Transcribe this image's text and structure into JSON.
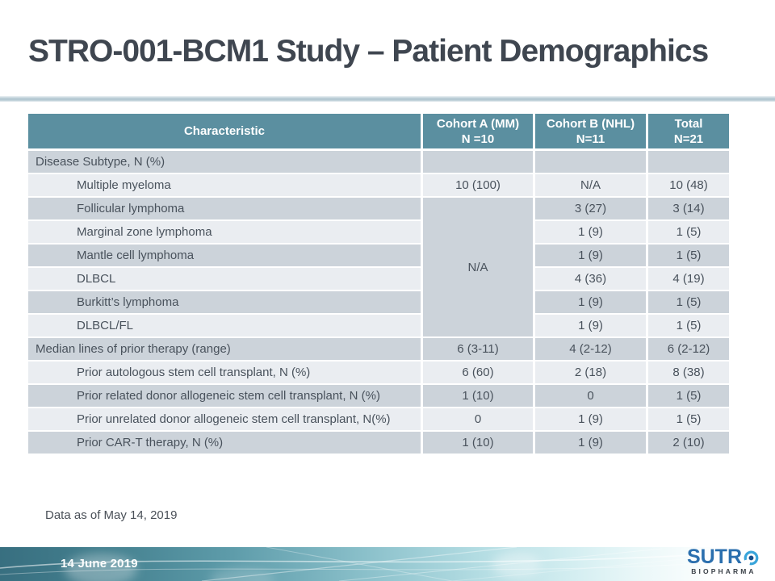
{
  "slide": {
    "title": "STRO-001-BCM1 Study – Patient Demographics",
    "footnote": "Data as of May 14, 2019"
  },
  "table": {
    "columns": [
      {
        "label": "Characteristic",
        "sub": ""
      },
      {
        "label": "Cohort A (MM)",
        "sub": "N =10"
      },
      {
        "label": "Cohort B (NHL)",
        "sub": "N=11"
      },
      {
        "label": "Total",
        "sub": "N=21"
      }
    ],
    "rows": [
      {
        "label": "Disease Subtype, N (%)",
        "indent": false,
        "a": "",
        "b": "",
        "t": ""
      },
      {
        "label": "Multiple myeloma",
        "indent": true,
        "a": "10 (100)",
        "b": "N/A",
        "t": "10 (48)"
      },
      {
        "label": "Follicular lymphoma",
        "indent": true,
        "a": {
          "merge": 6,
          "value": "N/A"
        },
        "b": "3 (27)",
        "t": "3 (14)"
      },
      {
        "label": "Marginal zone lymphoma",
        "indent": true,
        "a": null,
        "b": "1 (9)",
        "t": "1 (5)"
      },
      {
        "label": "Mantle cell lymphoma",
        "indent": true,
        "a": null,
        "b": "1 (9)",
        "t": "1 (5)"
      },
      {
        "label": "DLBCL",
        "indent": true,
        "a": null,
        "b": "4 (36)",
        "t": "4 (19)"
      },
      {
        "label": "Burkitt’s lymphoma",
        "indent": true,
        "a": null,
        "b": "1 (9)",
        "t": "1 (5)"
      },
      {
        "label": "DLBCL/FL",
        "indent": true,
        "a": null,
        "b": "1 (9)",
        "t": "1 (5)"
      },
      {
        "label": "Median lines of prior therapy (range)",
        "indent": false,
        "a": "6 (3-11)",
        "b": "4 (2-12)",
        "t": "6 (2-12)"
      },
      {
        "label": "Prior autologous stem cell transplant, N (%)",
        "indent": true,
        "a": "6 (60)",
        "b": "2 (18)",
        "t": "8 (38)"
      },
      {
        "label": "Prior related donor allogeneic stem cell transplant, N (%)",
        "indent": true,
        "a": "1 (10)",
        "b": "0",
        "t": "1 (5)"
      },
      {
        "label": "Prior unrelated donor allogeneic stem cell transplant, N(%)",
        "indent": true,
        "a": "0",
        "b": "1 (9)",
        "t": "1 (5)"
      },
      {
        "label": "Prior CAR-T therapy, N (%)",
        "indent": true,
        "a": "1 (10)",
        "b": "1 (9)",
        "t": "2 (10)"
      }
    ]
  },
  "footer": {
    "date": "14 June 2019",
    "logo": {
      "wordmark": "SUTR",
      "letter_o": "O",
      "sub": "BIOPHARMA"
    }
  },
  "colors": {
    "header_teal": "#5B8FA0",
    "row_dark": "#CCD3DA",
    "row_light": "#EAEDF1",
    "title_text": "#3F4650",
    "table_text": "#49525C",
    "divider": "#B5C9D3",
    "footer_teal_dark": "#386F80",
    "footer_text": "#FDFEFE",
    "logo_blue": "#2B6FAE",
    "logo_light_blue": "#3AA5DA",
    "logo_navy": "#174F8C"
  }
}
